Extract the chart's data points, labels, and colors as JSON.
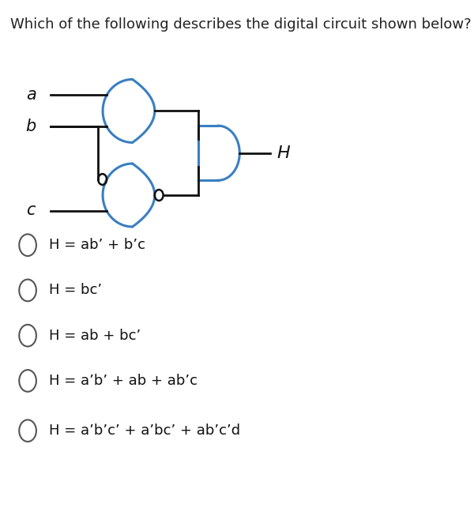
{
  "title": "Which of the following describes the digital circuit shown below?",
  "title_fontsize": 13,
  "title_color": "#222222",
  "bg_color": "#ffffff",
  "circuit_color": "#3a7fc1",
  "wire_color": "#111111",
  "label_color": "#111111",
  "options": [
    "H = ab’ + b’c",
    "H = bc’",
    "H = ab + bc’",
    "H = a’b’ + ab + ab’c",
    "H = a’b’c’ + a’bc’ + ab’c’d"
  ],
  "option_fontsize": 13,
  "figsize": [
    6.0,
    6.48
  ],
  "dpi": 100
}
